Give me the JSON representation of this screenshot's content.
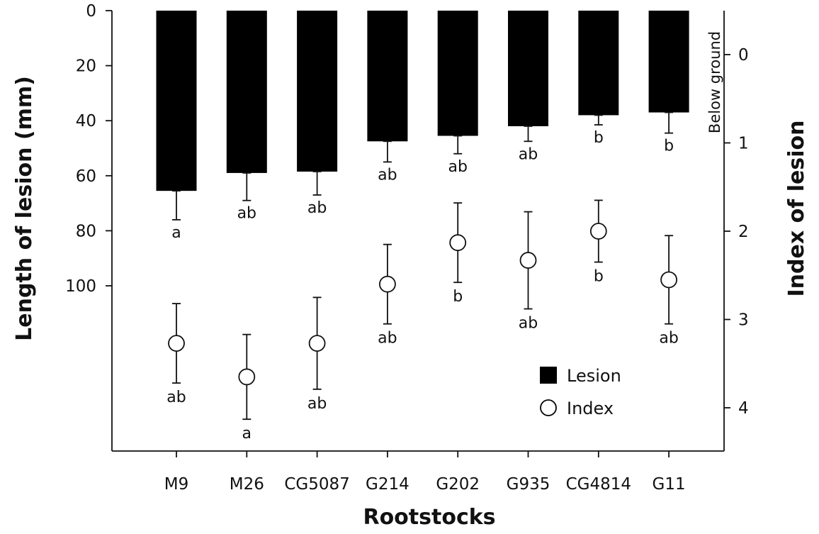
{
  "chart_data": {
    "type": "bar",
    "xlabel": "Rootstocks",
    "ylabel": "Length of lesion (mm)",
    "y2label": "Index of lesion",
    "side_note": "Below ground",
    "categories": [
      "M9",
      "M26",
      "CG5087",
      "G214",
      "G202",
      "G935",
      "CG4814",
      "G11"
    ],
    "y_axis": {
      "range": [
        0,
        160
      ],
      "inverted": true,
      "ticks": [
        0,
        20,
        40,
        60,
        80,
        100
      ],
      "tick_labels": [
        "0",
        "20",
        "40",
        "60",
        "80",
        "100"
      ]
    },
    "y2_axis": {
      "range": [
        -0.5,
        4.5
      ],
      "inverted": true,
      "ticks": [
        0,
        1,
        2,
        3,
        4
      ],
      "tick_labels": [
        "0",
        "1",
        "2",
        "3",
        "4"
      ]
    },
    "legend": {
      "position": "bottom-right",
      "entries": [
        {
          "label": "Lesion",
          "marker": "filled-square"
        },
        {
          "label": "Index",
          "marker": "open-circle"
        }
      ]
    },
    "series": [
      {
        "name": "Lesion",
        "kind": "bar",
        "axis": "left",
        "color": "#000000",
        "values": [
          65.5,
          59,
          58.5,
          47.5,
          45.5,
          42,
          38,
          37
        ],
        "error": [
          10.5,
          10,
          8.5,
          7.5,
          6.5,
          5.5,
          3.5,
          7.5
        ],
        "significance": [
          "a",
          "ab",
          "ab",
          "ab",
          "ab",
          "ab",
          "b",
          "b"
        ]
      },
      {
        "name": "Index",
        "kind": "point",
        "axis": "right",
        "color": "#000000",
        "values": [
          3.27,
          3.65,
          3.27,
          2.6,
          2.13,
          2.33,
          2.0,
          2.55
        ],
        "error": [
          0.45,
          0.48,
          0.52,
          0.45,
          0.45,
          0.55,
          0.35,
          0.5
        ],
        "significance": [
          "ab",
          "a",
          "ab",
          "ab",
          "b",
          "ab",
          "b",
          "ab"
        ]
      }
    ]
  }
}
